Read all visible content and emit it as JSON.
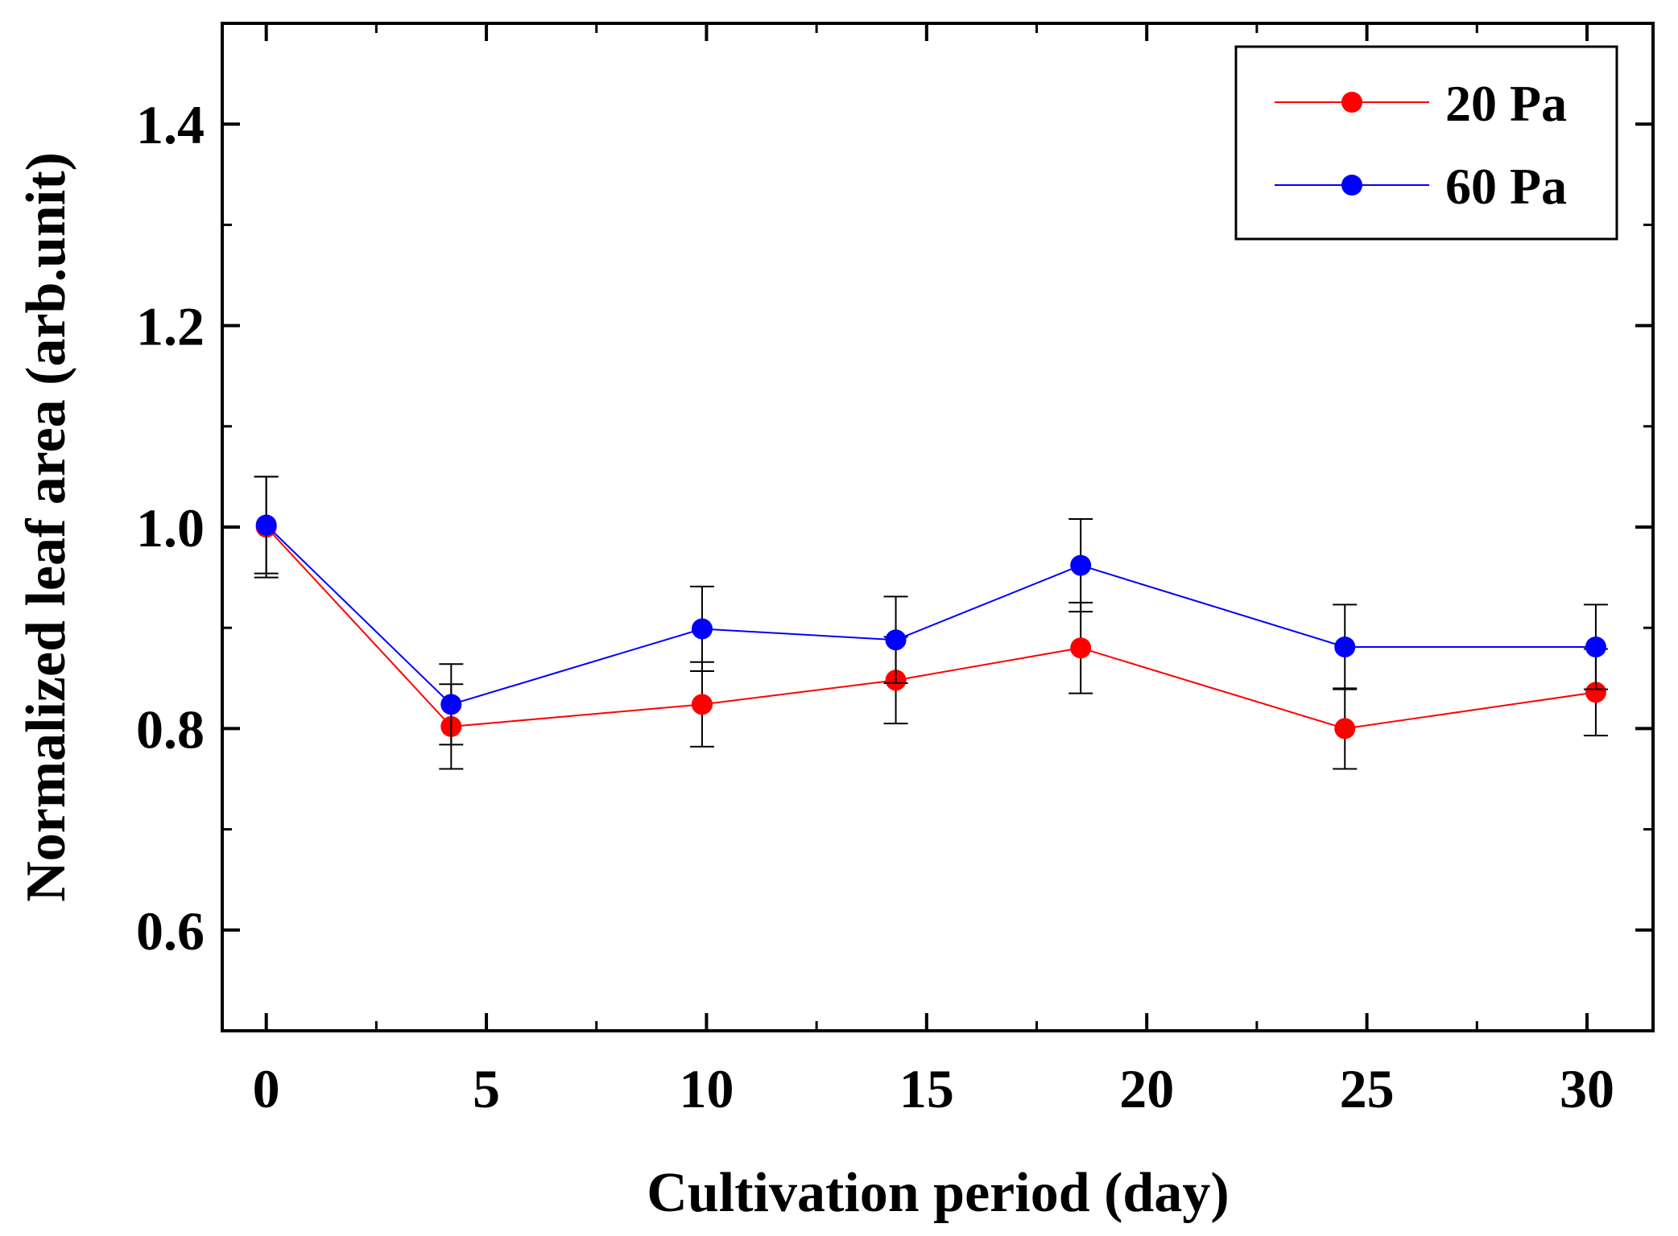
{
  "chart_data": {
    "type": "line",
    "title": "",
    "xlabel": "Cultivation period (day)",
    "ylabel": "Normalized leaf area (arb.unit)",
    "xlim": [
      -1,
      31.5
    ],
    "ylim": [
      0.5,
      1.5
    ],
    "x_ticks": [
      0,
      5,
      10,
      15,
      20,
      25,
      30
    ],
    "x_tick_labels": [
      "0",
      "5",
      "10",
      "15",
      "20",
      "25",
      "30"
    ],
    "y_ticks": [
      0.6,
      0.8,
      1.0,
      1.2,
      1.4
    ],
    "y_tick_labels": [
      "0.6",
      "0.8",
      "1.0",
      "1.2",
      "1.4"
    ],
    "grid": false,
    "legend_position": "top-right",
    "series": [
      {
        "name": "20 Pa",
        "color": "#ff0000",
        "x": [
          0,
          4.2,
          9.9,
          14.3,
          18.5,
          24.5,
          30.2
        ],
        "values": [
          1.0,
          0.802,
          0.824,
          0.848,
          0.88,
          0.8,
          0.836
        ],
        "error": [
          0.05,
          0.042,
          0.042,
          0.043,
          0.045,
          0.04,
          0.043
        ]
      },
      {
        "name": "60 Pa",
        "color": "#0000ff",
        "x": [
          0,
          4.2,
          9.9,
          14.3,
          18.5,
          24.5,
          30.2
        ],
        "values": [
          1.002,
          0.824,
          0.899,
          0.888,
          0.962,
          0.881,
          0.881
        ],
        "error": [
          0.048,
          0.04,
          0.042,
          0.043,
          0.046,
          0.042,
          0.042
        ]
      }
    ]
  }
}
